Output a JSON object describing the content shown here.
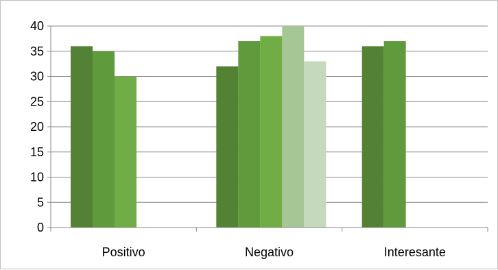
{
  "chart_data": {
    "type": "bar",
    "title": "",
    "xlabel": "",
    "ylabel": "",
    "categories": [
      "Positivo",
      "Negativo",
      "Interesante"
    ],
    "series": [
      {
        "values": [
          36,
          32,
          36
        ]
      },
      {
        "values": [
          35,
          37,
          37
        ]
      },
      {
        "values": [
          30,
          38,
          null
        ]
      },
      {
        "values": [
          null,
          40,
          null
        ]
      },
      {
        "values": [
          null,
          33,
          null
        ]
      }
    ],
    "series_colors": [
      "#548235",
      "#5f9a3c",
      "#70ad47",
      "#a5c795",
      "#c5dabc"
    ],
    "ylim": [
      0,
      40
    ],
    "yticks": [
      0,
      5,
      10,
      15,
      20,
      25,
      30,
      35,
      40
    ],
    "grid": true,
    "legend": "none"
  }
}
